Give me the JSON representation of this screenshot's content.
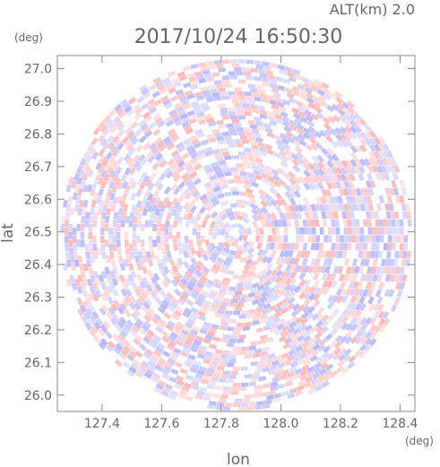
{
  "chart_data": {
    "type": "heatmap",
    "title": "2017/10/24 16:50:30",
    "subtitle": "ALT(km) 2.0",
    "xlabel": "lon",
    "ylabel": "lat",
    "x_unit": "(deg)",
    "y_unit": "(deg)",
    "xlim": [
      127.25,
      128.45
    ],
    "ylim": [
      25.95,
      27.04
    ],
    "x_ticks": [
      "127.4",
      "127.6",
      "127.8",
      "128.0",
      "128.2",
      "128.4"
    ],
    "y_ticks": [
      "26.0",
      "26.1",
      "26.2",
      "26.3",
      "26.4",
      "26.5",
      "26.6",
      "26.7",
      "26.8",
      "26.9",
      "27.0"
    ],
    "center": {
      "lon": 127.85,
      "lat": 26.49
    },
    "radius_deg": 0.59,
    "grid": false,
    "legend": "none",
    "colors": {
      "positive": "#ffb4b4",
      "negative": "#b4b4ff",
      "neutral": "#ffffff",
      "axis": "#888888"
    }
  }
}
